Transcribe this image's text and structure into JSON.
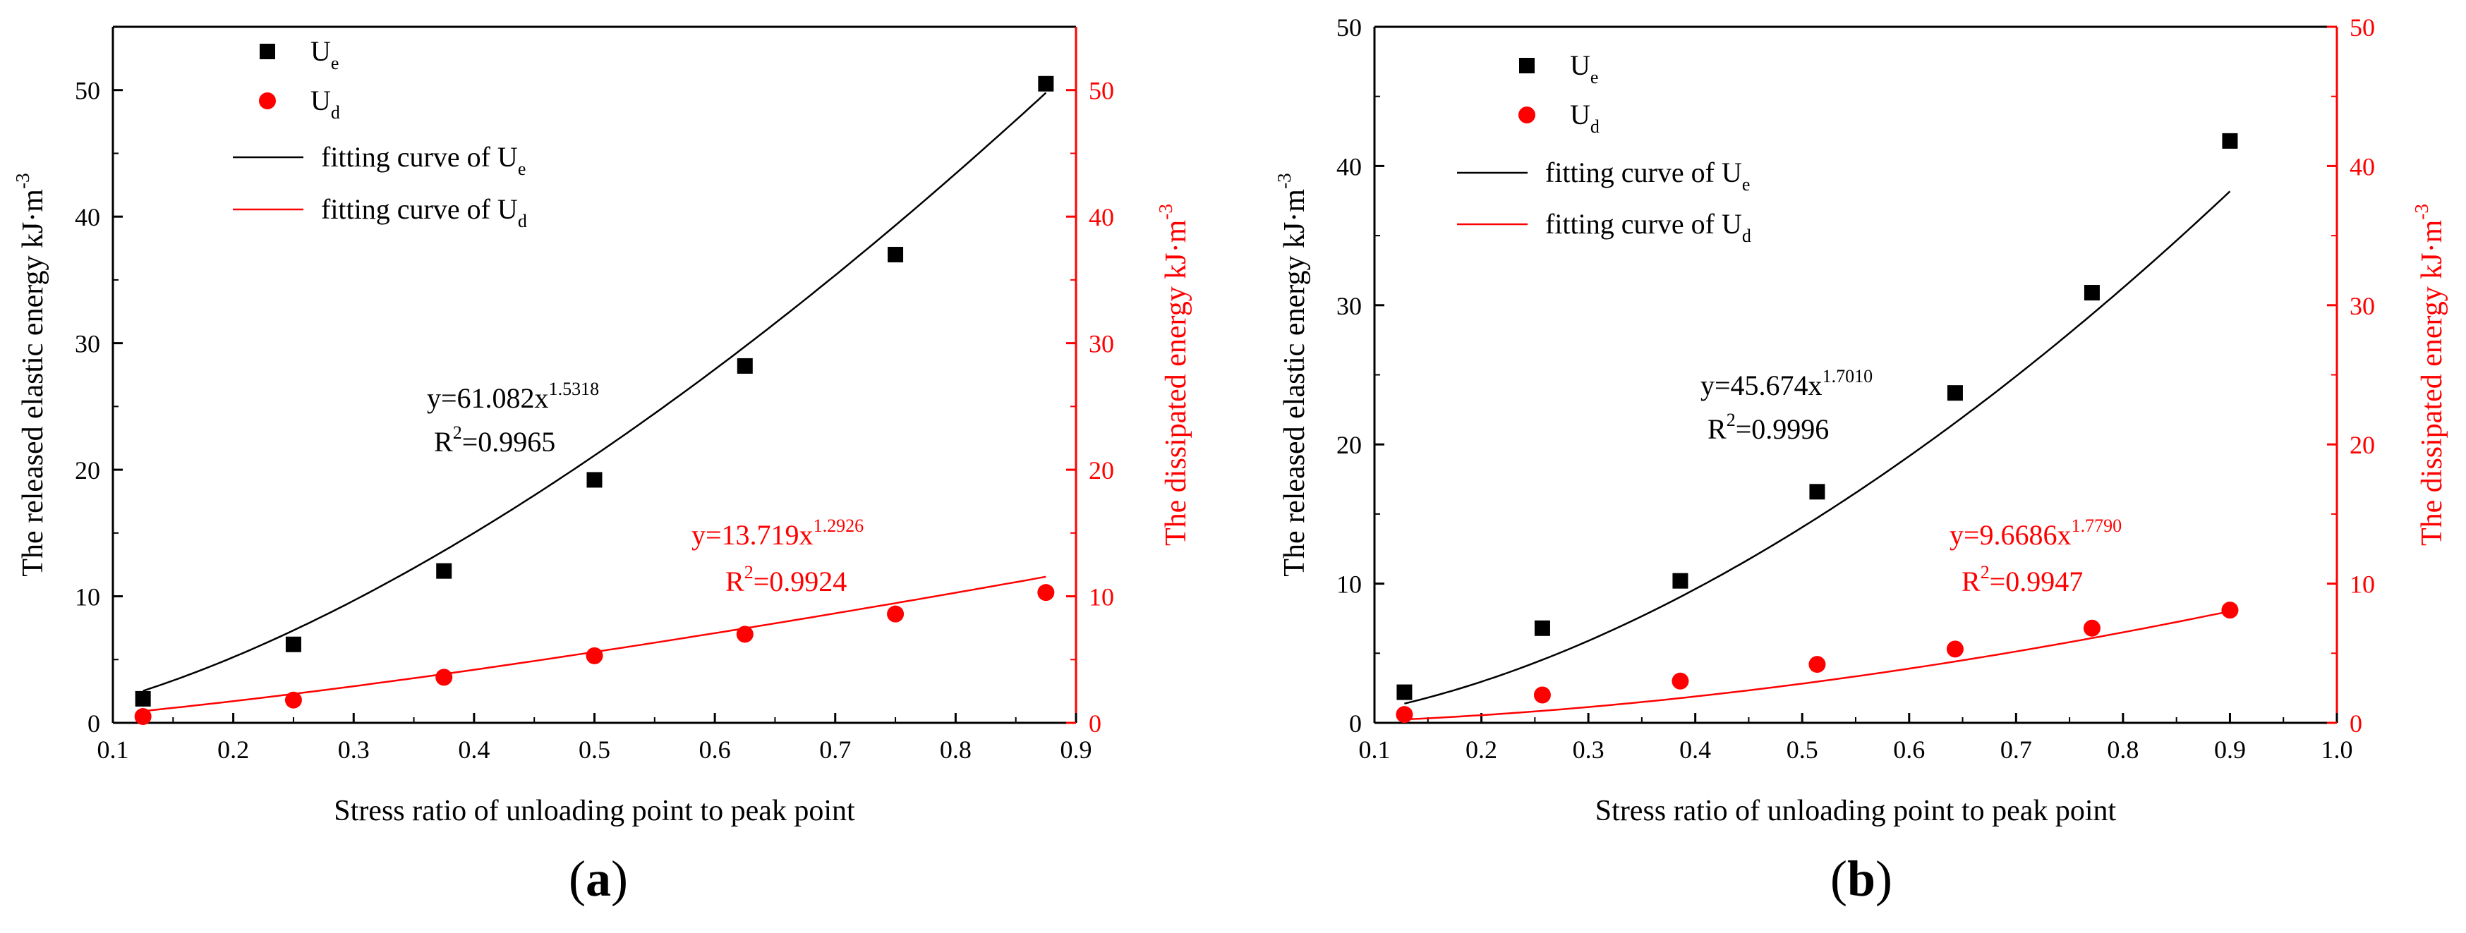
{
  "chart_data": [
    {
      "type": "scatter",
      "panel_label": "(a)",
      "xlabel": "Stress ratio of unloading point to peak point",
      "ylabel_left": "The released elastic energy kJ·m",
      "ylabel_left_sup": "-3",
      "ylabel_right": "The dissipated energy kJ·m",
      "ylabel_right_sup": "-3",
      "xlim": [
        0.1,
        0.9
      ],
      "xticks": [
        "0.1",
        "0.2",
        "0.3",
        "0.4",
        "0.5",
        "0.6",
        "0.7",
        "0.8",
        "0.9"
      ],
      "ylim_left": [
        0,
        55
      ],
      "yticks_left": [
        "0",
        "10",
        "20",
        "30",
        "40",
        "50"
      ],
      "ylim_right": [
        0,
        55
      ],
      "yticks_right": [
        "0",
        "10",
        "20",
        "30",
        "40",
        "50"
      ],
      "grid": false,
      "legend_position": "top-left",
      "legend": {
        "ue": {
          "main": "U",
          "sub": "e"
        },
        "ud": {
          "main": "U",
          "sub": "d"
        },
        "fit_ue": {
          "main": "fitting curve of U",
          "sub": "e"
        },
        "fit_ud": {
          "main": "fitting curve of U",
          "sub": "d"
        }
      },
      "series": [
        {
          "name": "Ue",
          "marker": "square",
          "color": "#000000",
          "axis": "left",
          "x": [
            0.125,
            0.25,
            0.375,
            0.5,
            0.625,
            0.75,
            0.875
          ],
          "y": [
            1.9,
            6.2,
            12.0,
            19.2,
            28.2,
            37.0,
            50.5
          ]
        },
        {
          "name": "Ud",
          "marker": "circle",
          "color": "#ff0000",
          "axis": "right",
          "x": [
            0.125,
            0.25,
            0.375,
            0.5,
            0.625,
            0.75,
            0.875
          ],
          "y": [
            0.5,
            1.8,
            3.6,
            5.3,
            7.0,
            8.6,
            10.3
          ]
        }
      ],
      "fits": [
        {
          "name": "fitting curve of Ue",
          "color": "#000000",
          "a": 61.082,
          "b": 1.5318,
          "eq_main": "y=61.082x",
          "eq_sup": "1.5318",
          "r2_pre": "R",
          "r2_sup": "2",
          "r2_post": "=0.9965"
        },
        {
          "name": "fitting curve of Ud",
          "color": "#ff0000",
          "a": 13.719,
          "b": 1.2926,
          "eq_main": "y=13.719x",
          "eq_sup": "1.2926",
          "r2_pre": "R",
          "r2_sup": "2",
          "r2_post": "=0.9924"
        }
      ]
    },
    {
      "type": "scatter",
      "panel_label": "(b)",
      "xlabel": "Stress ratio of unloading point to peak point",
      "ylabel_left": "The released elastic energy kJ·m",
      "ylabel_left_sup": "-3",
      "ylabel_right": "The dissipated energy kJ·m",
      "ylabel_right_sup": "-3",
      "xlim": [
        0.1,
        1.0
      ],
      "xticks": [
        "0.1",
        "0.2",
        "0.3",
        "0.4",
        "0.5",
        "0.6",
        "0.7",
        "0.8",
        "0.9",
        "1.0"
      ],
      "ylim_left": [
        0,
        50
      ],
      "yticks_left": [
        "0",
        "10",
        "20",
        "30",
        "40",
        "50"
      ],
      "ylim_right": [
        0,
        50
      ],
      "yticks_right": [
        "0",
        "10",
        "20",
        "30",
        "40",
        "50"
      ],
      "grid": false,
      "legend_position": "top-left",
      "legend": {
        "ue": {
          "main": "U",
          "sub": "e"
        },
        "ud": {
          "main": "U",
          "sub": "d"
        },
        "fit_ue": {
          "main": "fitting curve of U",
          "sub": "e"
        },
        "fit_ud": {
          "main": "fitting curve of U",
          "sub": "d"
        }
      },
      "series": [
        {
          "name": "Ue",
          "marker": "square",
          "color": "#000000",
          "axis": "left",
          "x": [
            0.128,
            0.257,
            0.386,
            0.514,
            0.643,
            0.771,
            0.9
          ],
          "y": [
            2.2,
            6.8,
            10.2,
            16.6,
            23.7,
            30.9,
            41.8
          ]
        },
        {
          "name": "Ud",
          "marker": "circle",
          "color": "#ff0000",
          "axis": "right",
          "x": [
            0.128,
            0.257,
            0.386,
            0.514,
            0.643,
            0.771,
            0.9
          ],
          "y": [
            0.6,
            2.0,
            3.0,
            4.2,
            5.3,
            6.8,
            8.1
          ]
        }
      ],
      "fits": [
        {
          "name": "fitting curve of Ue",
          "color": "#000000",
          "a": 45.674,
          "b": 1.701,
          "eq_main": "y=45.674x",
          "eq_sup": "1.7010",
          "r2_pre": "R",
          "r2_sup": "2",
          "r2_post": "=0.9996"
        },
        {
          "name": "fitting curve of Ud",
          "color": "#ff0000",
          "a": 9.6686,
          "b": 1.779,
          "eq_main": "y=9.6686x",
          "eq_sup": "1.7790",
          "r2_pre": "R",
          "r2_sup": "2",
          "r2_post": "=0.9947"
        }
      ]
    }
  ]
}
